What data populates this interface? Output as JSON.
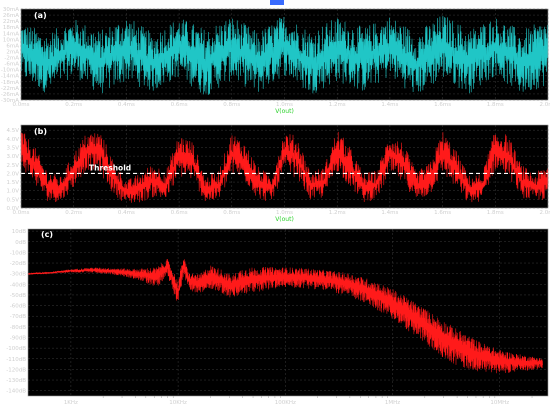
{
  "chart_data": [
    {
      "panel": "(a)",
      "type": "line",
      "x_label": "V(out)",
      "x_unit": "ms",
      "x_range": [
        0,
        2.0
      ],
      "x_ticks": [
        "0.0ms",
        "0.2ms",
        "0.4ms",
        "0.6ms",
        "0.8ms",
        "1.0ms",
        "1.2ms",
        "1.4ms",
        "1.6ms",
        "1.8ms",
        "2.0ms"
      ],
      "y_ticks": [
        "30mA",
        "26mA",
        "22mA",
        "18mA",
        "14mA",
        "10mA",
        "6mA",
        "2mA",
        "-2mA",
        "-6mA",
        "-10mA",
        "-14mA",
        "-18mA",
        "-22mA",
        "-26mA",
        "-30mA"
      ],
      "y_range": [
        -30,
        30
      ],
      "color": "#20c6c6",
      "envelope": {
        "x": [
          0,
          0.1,
          0.2,
          0.3,
          0.4,
          0.5,
          0.6,
          0.7,
          0.8,
          0.9,
          1.0,
          1.1,
          1.2,
          1.3,
          1.4,
          1.5,
          1.6,
          1.7,
          1.8,
          1.9,
          2.0
        ],
        "upper": [
          22,
          14,
          24,
          16,
          26,
          14,
          25,
          17,
          26,
          15,
          27,
          16,
          25,
          18,
          26,
          15,
          27,
          17,
          25,
          16,
          24
        ],
        "lower": [
          -16,
          -26,
          -14,
          -27,
          -18,
          -25,
          -15,
          -28,
          -17,
          -26,
          -14,
          -27,
          -18,
          -25,
          -15,
          -28,
          -16,
          -26,
          -14,
          -27,
          -20
        ]
      }
    },
    {
      "panel": "(b)",
      "type": "line",
      "x_label": "V(out)",
      "x_unit": "ms",
      "x_range": [
        0,
        2.0
      ],
      "x_ticks": [
        "0.0ms",
        "0.2ms",
        "0.4ms",
        "0.6ms",
        "0.8ms",
        "1.0ms",
        "1.2ms",
        "1.4ms",
        "1.6ms",
        "1.8ms",
        "2.0ms"
      ],
      "y_ticks": [
        "4.5V",
        "4.0V",
        "3.5V",
        "3.0V",
        "2.5V",
        "2.0V",
        "1.5V",
        "1.0V",
        "0.5V",
        "0.0V"
      ],
      "y_range": [
        0,
        4.8
      ],
      "color": "#ff1a1a",
      "threshold": {
        "label": "Threshold",
        "value": 2.0
      },
      "envelope": {
        "x": [
          0,
          0.05,
          0.1,
          0.15,
          0.2,
          0.25,
          0.3,
          0.35,
          0.4,
          0.45,
          0.5,
          0.55,
          0.6,
          0.65,
          0.7,
          0.75,
          0.8,
          0.85,
          0.9,
          0.95,
          1.0,
          1.05,
          1.1,
          1.15,
          1.2,
          1.25,
          1.3,
          1.35,
          1.4,
          1.45,
          1.5,
          1.55,
          1.6,
          1.65,
          1.7,
          1.75,
          1.8,
          1.85,
          1.9,
          1.95,
          2.0
        ],
        "upper": [
          4.6,
          3.6,
          2.2,
          1.8,
          3.2,
          4.4,
          4.5,
          2.8,
          1.6,
          2.0,
          2.6,
          2.2,
          4.3,
          3.9,
          1.8,
          2.2,
          4.4,
          3.8,
          2.4,
          1.9,
          4.5,
          4.1,
          2.1,
          2.4,
          4.6,
          3.5,
          2.0,
          2.2,
          4.4,
          3.8,
          2.1,
          2.6,
          4.5,
          3.4,
          1.9,
          2.0,
          4.6,
          4.2,
          2.5,
          2.0,
          2.6
        ],
        "lower": [
          2.4,
          1.4,
          0.4,
          0.3,
          1.2,
          2.2,
          2.0,
          0.8,
          0.2,
          0.3,
          0.6,
          0.4,
          1.8,
          1.6,
          0.3,
          0.4,
          1.9,
          1.5,
          0.5,
          0.3,
          2.0,
          1.7,
          0.4,
          0.6,
          2.1,
          1.2,
          0.3,
          0.5,
          1.9,
          1.4,
          0.4,
          0.7,
          2.0,
          1.1,
          0.2,
          0.4,
          2.2,
          1.8,
          0.6,
          0.3,
          0.5
        ]
      }
    },
    {
      "panel": "(c)",
      "type": "line",
      "x_label": "",
      "x_scale": "log",
      "x_ticks": [
        "1KHz",
        "10KHz",
        "100KHz",
        "1MHz",
        "10MHz"
      ],
      "y_ticks": [
        "10dB",
        "0dB",
        "-10dB",
        "-20dB",
        "-30dB",
        "-40dB",
        "-50dB",
        "-60dB",
        "-70dB",
        "-80dB",
        "-90dB",
        "-100dB",
        "-110dB",
        "-120dB",
        "-130dB",
        "-140dB"
      ],
      "y_range": [
        -145,
        12
      ],
      "color": "#ff1a1a",
      "spectrum": {
        "log_f": [
          2.6,
          2.8,
          3.0,
          3.2,
          3.4,
          3.6,
          3.8,
          3.9,
          4.0,
          4.05,
          4.1,
          4.2,
          4.3,
          4.4,
          4.5,
          4.6,
          4.8,
          5.0,
          5.2,
          5.4,
          5.6,
          5.8,
          6.0,
          6.2,
          6.4,
          6.6,
          6.8,
          7.0,
          7.2,
          7.4
        ],
        "level": [
          -30,
          -29,
          -27,
          -26,
          -27,
          -29,
          -31,
          -22,
          -45,
          -20,
          -35,
          -38,
          -30,
          -34,
          -40,
          -34,
          -32,
          -31,
          -32,
          -34,
          -38,
          -45,
          -55,
          -68,
          -82,
          -95,
          -104,
          -110,
          -112,
          -113
        ],
        "spread": [
          1,
          1,
          2,
          3,
          4,
          6,
          12,
          10,
          14,
          12,
          10,
          12,
          14,
          14,
          14,
          16,
          14,
          12,
          12,
          12,
          14,
          16,
          18,
          20,
          22,
          22,
          18,
          14,
          10,
          6
        ]
      }
    }
  ]
}
